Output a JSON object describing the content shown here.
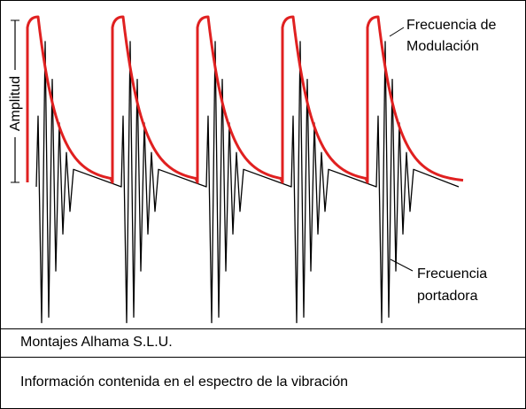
{
  "figure": {
    "axis_label": "Amplitud",
    "modulation_label": [
      "Frecuencia de",
      "Modulación"
    ],
    "carrier_label": [
      "Frecuencia",
      "portadora"
    ]
  },
  "footer": {
    "company": "Montajes Alhama S.L.U.",
    "caption": "Información contenida en el espectro de la vibración"
  }
}
